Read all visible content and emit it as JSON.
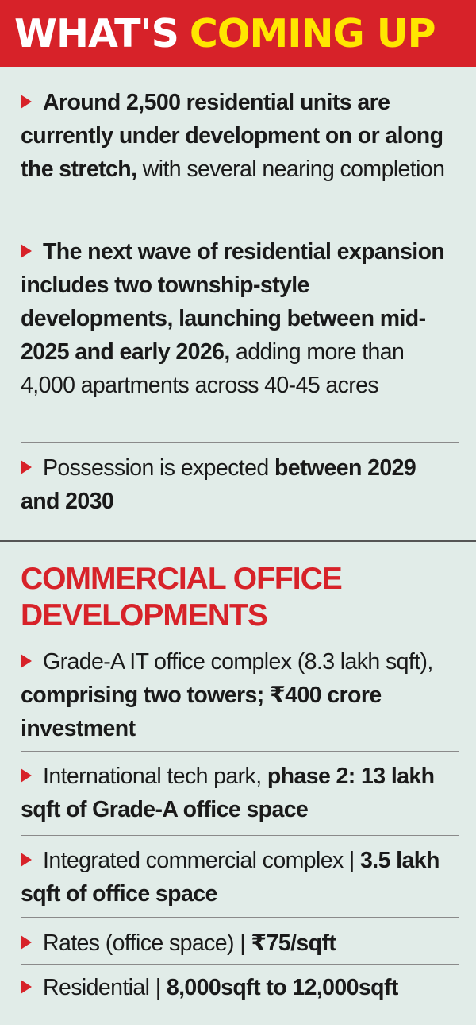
{
  "banner": {
    "part1": "WHAT'S",
    "part2": "COMING UP"
  },
  "residential_items": [
    {
      "bold": "Around 2,500 residential units are currently under development on or along the stretch,",
      "rest": " with several nearing completion"
    },
    {
      "bold": "The next wave of residential expansion includes two township-style developments, launching between mid-2025 and early 2026,",
      "rest": " adding more than 4,000 apartments across 40-45 acres"
    },
    {
      "plain": "Possession is expected ",
      "bold": "between 2029 and 2030"
    }
  ],
  "commercial": {
    "title": "COMMERCIAL OFFICE DEVELOPMENTS",
    "items": [
      {
        "plain": "Grade-A IT office complex (8.3 lakh sqft), ",
        "bold": "comprising two towers; ₹400 crore investment"
      },
      {
        "plain": "International tech park, ",
        "bold": "phase 2: 13 lakh sqft of Grade-A office space"
      },
      {
        "plain": "Integrated commercial complex | ",
        "bold": "3.5 lakh sqft of office space"
      },
      {
        "plain": "Rates (office space) | ",
        "bold": "₹75/sqft"
      },
      {
        "plain": "Residential | ",
        "bold": "8,000sqft to 12,000sqft"
      }
    ]
  },
  "colors": {
    "accent_red": "#d72229",
    "banner_yellow": "#ffe600",
    "panel_bg": "#e1ece8"
  },
  "icons": {
    "bullet": "red-arrow-bullet-icon"
  }
}
